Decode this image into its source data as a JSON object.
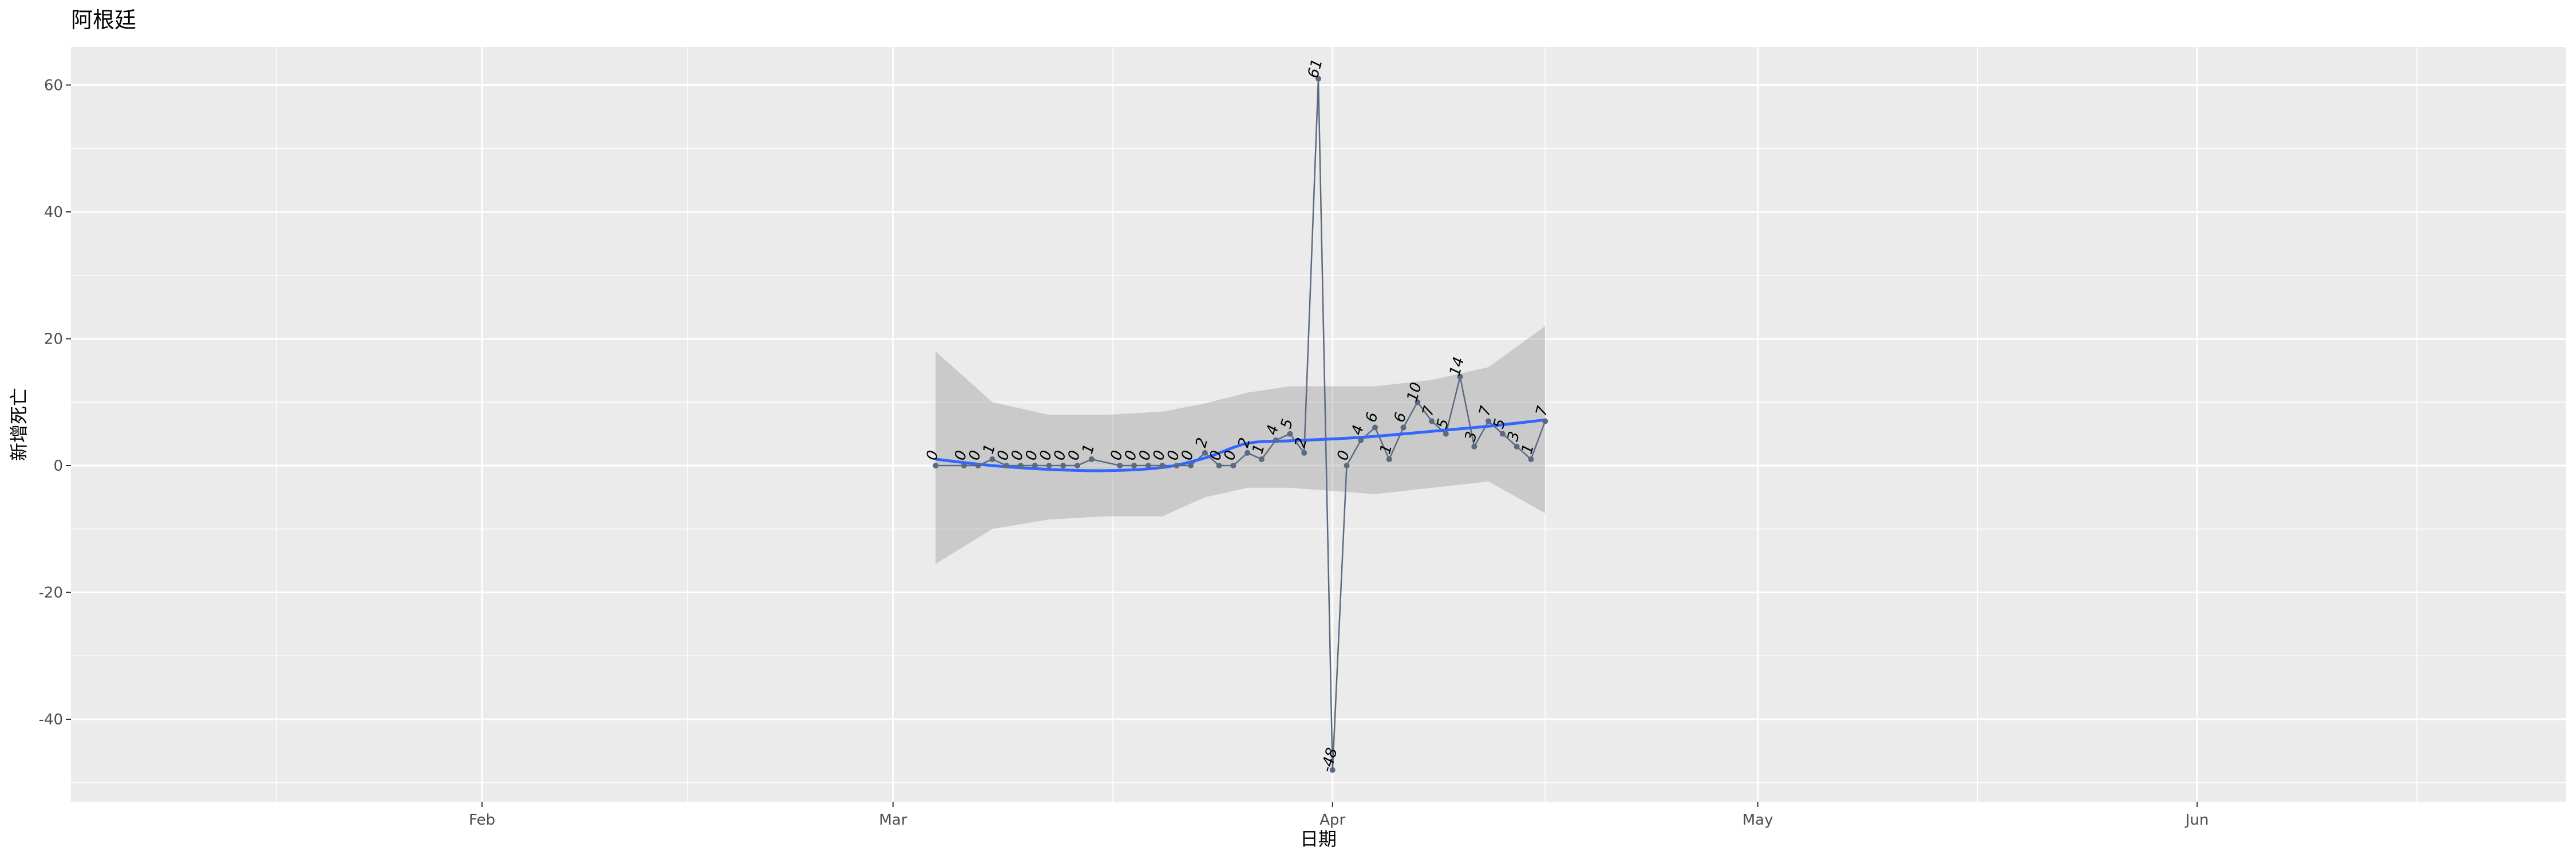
{
  "chart_data": {
    "type": "line",
    "title": "阿根廷",
    "xlabel": "日期",
    "ylabel": "新增死亡",
    "x_ticks": [
      "Feb",
      "Mar",
      "Apr",
      "May",
      "Jun"
    ],
    "y_ticks": [
      "-40",
      "-20",
      "0",
      "20",
      "40",
      "60"
    ],
    "xlim": [
      "2020-01-03",
      "2020-06-27"
    ],
    "ylim": [
      -53,
      66
    ],
    "grid": true,
    "legend": "none",
    "series": [
      {
        "type": "line_points_labeled",
        "color": "#5a6a80",
        "x": [
          "2020-03-04",
          "2020-03-06",
          "2020-03-07",
          "2020-03-08",
          "2020-03-09",
          "2020-03-10",
          "2020-03-11",
          "2020-03-12",
          "2020-03-13",
          "2020-03-14",
          "2020-03-15",
          "2020-03-17",
          "2020-03-18",
          "2020-03-19",
          "2020-03-20",
          "2020-03-21",
          "2020-03-22",
          "2020-03-23",
          "2020-03-24",
          "2020-03-25",
          "2020-03-26",
          "2020-03-27",
          "2020-03-28",
          "2020-03-29",
          "2020-03-30",
          "2020-03-31",
          "2020-04-01",
          "2020-04-02",
          "2020-04-03",
          "2020-04-04",
          "2020-04-05",
          "2020-04-06",
          "2020-04-07",
          "2020-04-08",
          "2020-04-09",
          "2020-04-10",
          "2020-04-11",
          "2020-04-12",
          "2020-04-13",
          "2020-04-14",
          "2020-04-15",
          "2020-04-16"
        ],
        "y": [
          0,
          0,
          0,
          1,
          0,
          0,
          0,
          0,
          0,
          0,
          1,
          0,
          0,
          0,
          0,
          0,
          0,
          2,
          0,
          0,
          2,
          1,
          4,
          5,
          2,
          61,
          -48,
          0,
          4,
          6,
          1,
          6,
          10,
          7,
          5,
          14,
          3,
          7,
          5,
          3,
          1,
          7
        ]
      },
      {
        "type": "smooth_with_confidence_band",
        "color": "#3366ff",
        "band_color": "#999999",
        "x": [
          "2020-03-04",
          "2020-03-08",
          "2020-03-12",
          "2020-03-16",
          "2020-03-20",
          "2020-03-23",
          "2020-03-26",
          "2020-03-29",
          "2020-04-01",
          "2020-04-04",
          "2020-04-08",
          "2020-04-12",
          "2020-04-16"
        ],
        "fit": [
          1.0,
          0.0,
          -0.6,
          -0.8,
          -0.3,
          1.2,
          3.5,
          3.9,
          4.2,
          4.6,
          5.4,
          6.2,
          7.2
        ],
        "lower": [
          -15.5,
          -10.0,
          -8.5,
          -8.0,
          -8.0,
          -5.0,
          -3.5,
          -3.5,
          -4.0,
          -4.5,
          -3.5,
          -2.5,
          -7.5
        ],
        "upper": [
          18.0,
          10.0,
          8.0,
          8.0,
          8.5,
          9.8,
          11.5,
          12.5,
          12.5,
          12.5,
          13.5,
          15.5,
          22.0
        ]
      }
    ]
  }
}
